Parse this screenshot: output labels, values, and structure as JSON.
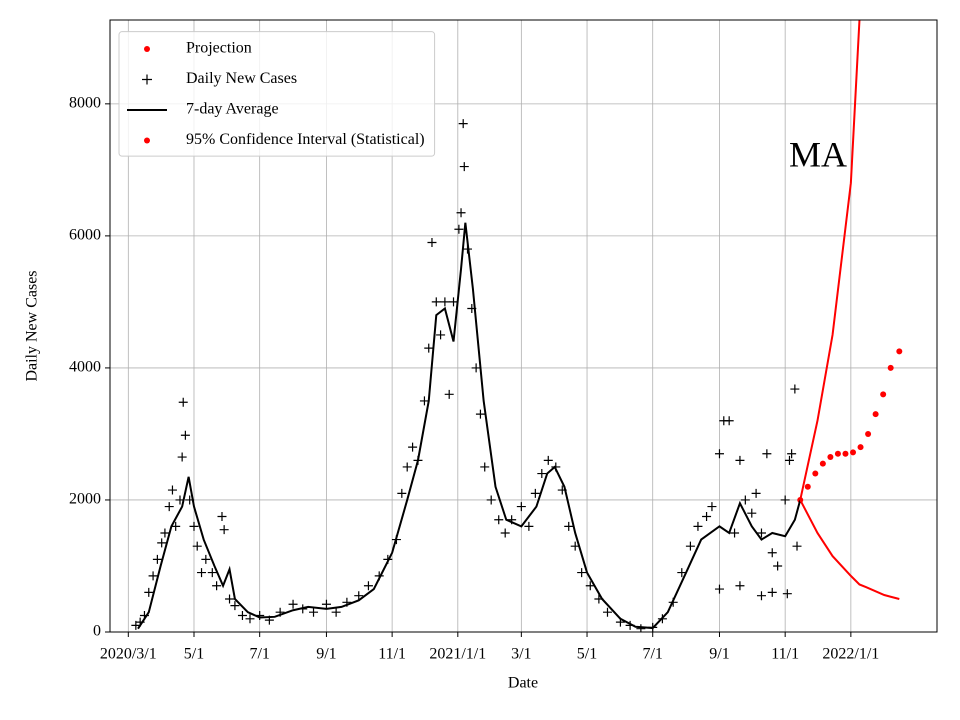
{
  "chart_data": {
    "type": "line",
    "annotation": "MA",
    "xlabel": "Date",
    "ylabel": "Daily New Cases",
    "xlim": [
      "2020-02-13",
      "2022-03-22"
    ],
    "ylim": [
      0,
      9270
    ],
    "grid": true,
    "legend": "upper left",
    "xticks": [
      {
        "value": "2020-03-01",
        "label": "2020/3/1"
      },
      {
        "value": "2020-05-01",
        "label": "5/1"
      },
      {
        "value": "2020-07-01",
        "label": "7/1"
      },
      {
        "value": "2020-09-01",
        "label": "9/1"
      },
      {
        "value": "2020-11-01",
        "label": "11/1"
      },
      {
        "value": "2021-01-01",
        "label": "2021/1/1"
      },
      {
        "value": "2021-03-01",
        "label": "3/1"
      },
      {
        "value": "2021-05-01",
        "label": "5/1"
      },
      {
        "value": "2021-07-01",
        "label": "7/1"
      },
      {
        "value": "2021-09-01",
        "label": "9/1"
      },
      {
        "value": "2021-11-01",
        "label": "11/1"
      },
      {
        "value": "2022-01-01",
        "label": "2022/1/1"
      }
    ],
    "yticks": [
      0,
      2000,
      4000,
      6000,
      8000
    ],
    "series": [
      {
        "name": "Projection",
        "color": "#ff0000",
        "marker": "dot",
        "x": [
          "2021-11-15",
          "2021-11-22",
          "2021-11-29",
          "2021-12-06",
          "2021-12-13",
          "2021-12-20",
          "2021-12-27",
          "2022-01-03",
          "2022-01-10",
          "2022-01-17",
          "2022-01-24",
          "2022-01-31",
          "2022-02-07",
          "2022-02-15"
        ],
        "values": [
          2000,
          2200,
          2400,
          2550,
          2650,
          2700,
          2700,
          2720,
          2800,
          3000,
          3300,
          3600,
          4000,
          4250
        ]
      },
      {
        "name": "Daily New Cases",
        "color": "#000000",
        "marker": "plus",
        "x": [
          "2020-03-08",
          "2020-03-12",
          "2020-03-16",
          "2020-03-20",
          "2020-03-24",
          "2020-03-28",
          "2020-04-01",
          "2020-04-04",
          "2020-04-08",
          "2020-04-11",
          "2020-04-14",
          "2020-04-18",
          "2020-04-20",
          "2020-04-21",
          "2020-04-23",
          "2020-04-27",
          "2020-05-01",
          "2020-05-04",
          "2020-05-08",
          "2020-05-12",
          "2020-05-18",
          "2020-05-22",
          "2020-05-27",
          "2020-05-29",
          "2020-06-03",
          "2020-06-08",
          "2020-06-15",
          "2020-06-22",
          "2020-07-01",
          "2020-07-10",
          "2020-07-20",
          "2020-08-01",
          "2020-08-10",
          "2020-08-20",
          "2020-09-01",
          "2020-09-10",
          "2020-09-20",
          "2020-10-01",
          "2020-10-10",
          "2020-10-20",
          "2020-10-28",
          "2020-11-05",
          "2020-11-10",
          "2020-11-15",
          "2020-11-20",
          "2020-11-25",
          "2020-12-01",
          "2020-12-05",
          "2020-12-08",
          "2020-12-12",
          "2020-12-16",
          "2020-12-20",
          "2020-12-24",
          "2020-12-28",
          "2021-01-02",
          "2021-01-04",
          "2021-01-06",
          "2021-01-07",
          "2021-01-10",
          "2021-01-14",
          "2021-01-18",
          "2021-01-22",
          "2021-01-26",
          "2021-02-01",
          "2021-02-08",
          "2021-02-14",
          "2021-02-20",
          "2021-03-01",
          "2021-03-08",
          "2021-03-14",
          "2021-03-20",
          "2021-03-26",
          "2021-04-02",
          "2021-04-08",
          "2021-04-14",
          "2021-04-20",
          "2021-04-26",
          "2021-05-04",
          "2021-05-12",
          "2021-05-20",
          "2021-06-01",
          "2021-06-10",
          "2021-06-20",
          "2021-07-01",
          "2021-07-10",
          "2021-07-20",
          "2021-07-28",
          "2021-08-05",
          "2021-08-12",
          "2021-08-20",
          "2021-08-25",
          "2021-09-01",
          "2021-09-05",
          "2021-09-10",
          "2021-09-15",
          "2021-09-20",
          "2021-09-25",
          "2021-10-01",
          "2021-10-05",
          "2021-10-10",
          "2021-10-15",
          "2021-10-20",
          "2021-10-25",
          "2021-11-01",
          "2021-11-05",
          "2021-11-07",
          "2021-11-10",
          "2021-11-12",
          "2021-09-01",
          "2021-09-20",
          "2021-10-10",
          "2021-10-20",
          "2021-11-03"
        ],
        "values": [
          100,
          150,
          250,
          600,
          850,
          1100,
          1350,
          1500,
          1900,
          2150,
          1600,
          2000,
          2650,
          3480,
          2980,
          2000,
          1600,
          1300,
          900,
          1100,
          900,
          700,
          1750,
          1550,
          500,
          400,
          250,
          200,
          250,
          180,
          300,
          420,
          350,
          300,
          420,
          300,
          450,
          550,
          700,
          850,
          1100,
          1400,
          2100,
          2500,
          2800,
          2600,
          3500,
          4300,
          5900,
          5000,
          4500,
          5000,
          3600,
          5000,
          6100,
          6350,
          7700,
          7050,
          5800,
          4900,
          4000,
          3300,
          2500,
          2000,
          1700,
          1500,
          1700,
          1900,
          1600,
          2100,
          2400,
          2600,
          2500,
          2150,
          1600,
          1300,
          900,
          700,
          500,
          300,
          150,
          100,
          50,
          70,
          200,
          450,
          900,
          1300,
          1600,
          1750,
          1900,
          2700,
          3200,
          3200,
          1500,
          2600,
          2000,
          1800,
          2100,
          1500,
          2700,
          1200,
          1000,
          2000,
          2600,
          2700,
          3680,
          1300,
          650,
          700,
          550,
          600,
          580
        ]
      },
      {
        "name": "7-day Average",
        "color": "#000000",
        "marker": "line",
        "x": [
          "2020-03-10",
          "2020-03-20",
          "2020-03-31",
          "2020-04-10",
          "2020-04-20",
          "2020-04-26",
          "2020-05-01",
          "2020-05-10",
          "2020-05-20",
          "2020-05-28",
          "2020-06-03",
          "2020-06-08",
          "2020-06-20",
          "2020-07-01",
          "2020-07-15",
          "2020-08-01",
          "2020-08-15",
          "2020-09-01",
          "2020-09-15",
          "2020-10-01",
          "2020-10-15",
          "2020-11-01",
          "2020-11-15",
          "2020-11-25",
          "2020-12-05",
          "2020-12-12",
          "2020-12-20",
          "2020-12-28",
          "2021-01-04",
          "2021-01-08",
          "2021-01-15",
          "2021-01-25",
          "2021-02-05",
          "2021-02-15",
          "2021-03-01",
          "2021-03-15",
          "2021-03-25",
          "2021-04-01",
          "2021-04-10",
          "2021-04-20",
          "2021-05-01",
          "2021-05-15",
          "2021-06-01",
          "2021-06-15",
          "2021-07-01",
          "2021-07-15",
          "2021-08-01",
          "2021-08-15",
          "2021-09-01",
          "2021-09-10",
          "2021-09-20",
          "2021-10-01",
          "2021-10-10",
          "2021-10-20",
          "2021-11-01",
          "2021-11-10",
          "2021-11-15"
        ],
        "values": [
          50,
          300,
          1000,
          1600,
          1900,
          2350,
          1900,
          1400,
          1000,
          700,
          950,
          500,
          300,
          220,
          230,
          330,
          380,
          350,
          380,
          480,
          650,
          1200,
          2000,
          2600,
          3500,
          4800,
          4900,
          4400,
          5500,
          6200,
          5200,
          3500,
          2200,
          1700,
          1600,
          1900,
          2400,
          2500,
          2200,
          1500,
          900,
          500,
          200,
          80,
          60,
          300,
          900,
          1400,
          1600,
          1500,
          1950,
          1600,
          1400,
          1500,
          1450,
          1700,
          2000
        ]
      },
      {
        "name": "95% Confidence Interval (Statistical)",
        "color": "#ff0000",
        "marker": "dot",
        "x": [
          "2021-11-15",
          "2021-12-01",
          "2021-12-15",
          "2022-01-01",
          "2022-01-09",
          "2022-01-15",
          "2022-02-01",
          "2022-02-15"
        ],
        "upper": [
          2000,
          3200,
          4500,
          6800,
          9270,
          null,
          null,
          null
        ],
        "lower": [
          2000,
          1500,
          1150,
          850,
          720,
          680,
          560,
          500
        ]
      }
    ]
  }
}
